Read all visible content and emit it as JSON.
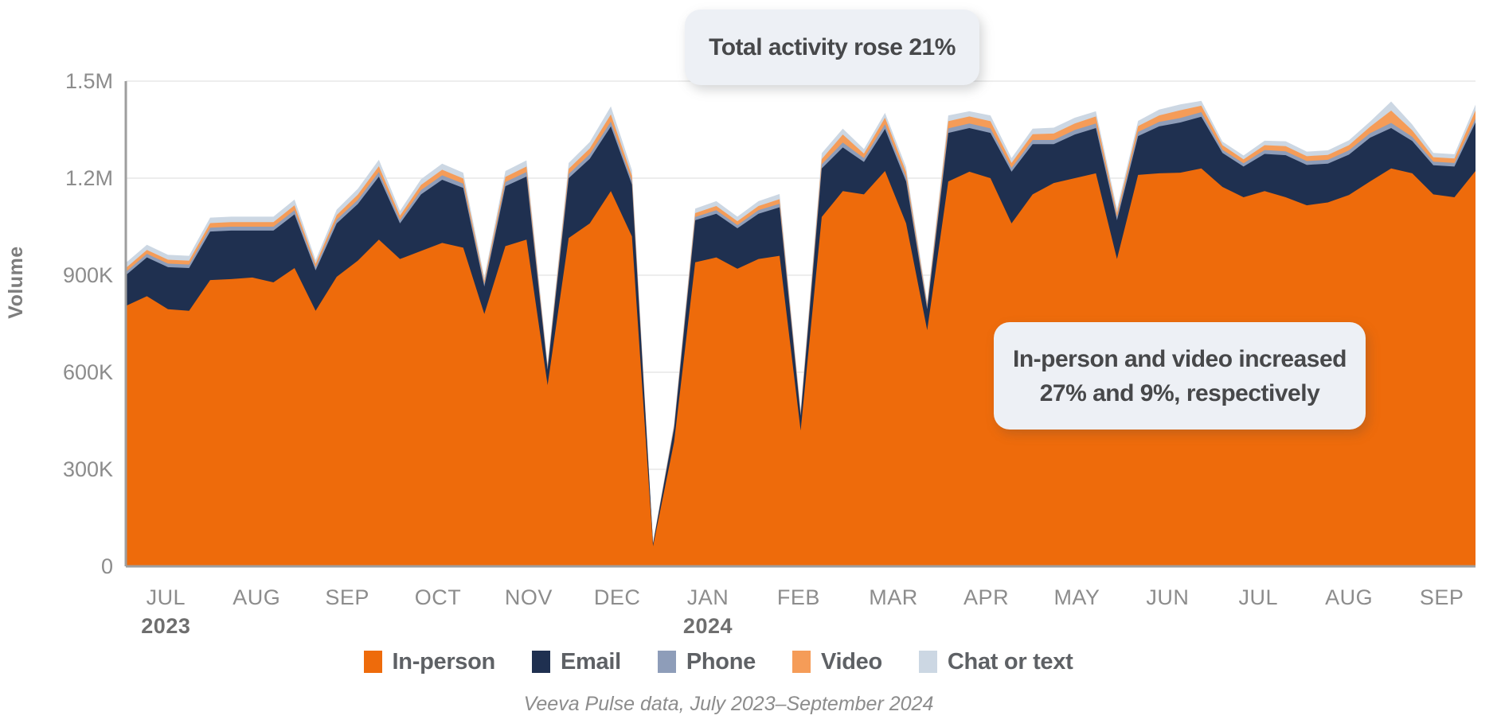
{
  "annotations": {
    "total": "Total activity rose 21%",
    "detail_line1": "In-person and video increased",
    "detail_line2": "27% and 9%, respectively"
  },
  "caption": "Veeva Pulse data, July 2023–September 2024",
  "y_axis": {
    "label": "Volume",
    "ticks": [
      {
        "label": "0",
        "value": 0
      },
      {
        "label": "300K",
        "value": 300
      },
      {
        "label": "600K",
        "value": 600
      },
      {
        "label": "900K",
        "value": 900
      },
      {
        "label": "1.2M",
        "value": 1200
      },
      {
        "label": "1.5M",
        "value": 1500
      }
    ]
  },
  "x_axis": {
    "months": [
      {
        "label": "JUL",
        "year": "2023",
        "wc": 1.9
      },
      {
        "label": "AUG",
        "wc": 6.2
      },
      {
        "label": "SEP",
        "wc": 10.5
      },
      {
        "label": "OCT",
        "wc": 14.8
      },
      {
        "label": "NOV",
        "wc": 19.1
      },
      {
        "label": "DEC",
        "wc": 23.3
      },
      {
        "label": "JAN",
        "year": "2024",
        "wc": 27.6
      },
      {
        "label": "FEB",
        "wc": 31.9
      },
      {
        "label": "MAR",
        "wc": 36.4
      },
      {
        "label": "APR",
        "wc": 40.8
      },
      {
        "label": "MAY",
        "wc": 45.1
      },
      {
        "label": "JUN",
        "wc": 49.4
      },
      {
        "label": "JUL",
        "wc": 53.7
      },
      {
        "label": "AUG",
        "wc": 58.0
      },
      {
        "label": "SEP",
        "wc": 62.4
      }
    ]
  },
  "colors": {
    "grid": "#ededed",
    "axis": "#9e9e9e",
    "callout_bg": "#edf0f5",
    "callout_text": "#47484a"
  },
  "chart_data": {
    "type": "area",
    "stacked": true,
    "title": "",
    "xlabel": "",
    "ylabel": "Volume",
    "ylim_thousands": [
      0,
      1500
    ],
    "y_tick_labels": [
      "0",
      "300K",
      "600K",
      "900K",
      "1.2M",
      "1.5M"
    ],
    "x_unit": "week",
    "n_weeks": 65,
    "x_range_label": "July 2023 – September 2024",
    "values_unit": "thousands of activities",
    "legend_position": "bottom",
    "grid": "horizontal-faint",
    "series": [
      {
        "name": "In-person",
        "color": "#ee6b0b",
        "values": [
          805,
          835,
          795,
          790,
          885,
          888,
          893,
          878,
          922,
          790,
          895,
          945,
          1010,
          950,
          975,
          1000,
          985,
          780,
          990,
          1010,
          560,
          1015,
          1060,
          1160,
          1020,
          62,
          385,
          940,
          955,
          920,
          950,
          960,
          420,
          1080,
          1160,
          1150,
          1222,
          1060,
          730,
          1190,
          1220,
          1200,
          1060,
          1150,
          1185,
          1200,
          1215,
          950,
          1210,
          1215,
          1217,
          1230,
          1173,
          1141,
          1160,
          1141,
          1116,
          1125,
          1148,
          1190,
          1230,
          1215,
          1150,
          1141,
          1222
        ]
      },
      {
        "name": "Email",
        "color": "#1f3050",
        "values": [
          95,
          120,
          130,
          132,
          150,
          150,
          145,
          160,
          166,
          125,
          165,
          175,
          195,
          110,
          175,
          195,
          185,
          85,
          185,
          195,
          48,
          185,
          200,
          200,
          160,
          8,
          42,
          130,
          135,
          125,
          140,
          150,
          45,
          150,
          135,
          100,
          130,
          130,
          65,
          150,
          135,
          140,
          160,
          155,
          120,
          135,
          140,
          120,
          120,
          145,
          155,
          160,
          105,
          95,
          115,
          130,
          125,
          120,
          125,
          135,
          125,
          100,
          90,
          95,
          150
        ]
      },
      {
        "name": "Phone",
        "color": "#8e9db9",
        "values": [
          10,
          11,
          11,
          11,
          12,
          12,
          12,
          12,
          13,
          10,
          12,
          13,
          14,
          11,
          13,
          14,
          13,
          8,
          13,
          14,
          5,
          13,
          14,
          15,
          12,
          1,
          4,
          10,
          11,
          10,
          11,
          11,
          5,
          13,
          15,
          12,
          15,
          13,
          7,
          14,
          14,
          14,
          12,
          13,
          13,
          14,
          14,
          10,
          13,
          14,
          14,
          14,
          10,
          10,
          12,
          12,
          12,
          12,
          13,
          14,
          16,
          13,
          11,
          11,
          12
        ]
      },
      {
        "name": "Video",
        "color": "#f59c58",
        "values": [
          12,
          12,
          12,
          12,
          14,
          14,
          14,
          14,
          15,
          10,
          14,
          16,
          18,
          13,
          16,
          17,
          16,
          9,
          16,
          17,
          6,
          16,
          18,
          22,
          15,
          1,
          5,
          12,
          13,
          12,
          13,
          14,
          6,
          16,
          25,
          14,
          20,
          16,
          8,
          22,
          22,
          22,
          15,
          18,
          20,
          20,
          22,
          12,
          18,
          20,
          24,
          20,
          14,
          12,
          15,
          16,
          15,
          15,
          16,
          20,
          38,
          20,
          14,
          14,
          25
        ]
      },
      {
        "name": "Chat or text",
        "color": "#ccd7e3",
        "values": [
          16,
          16,
          15,
          15,
          17,
          17,
          17,
          17,
          18,
          12,
          17,
          18,
          20,
          15,
          18,
          19,
          18,
          12,
          18,
          19,
          8,
          18,
          20,
          25,
          18,
          2,
          8,
          14,
          15,
          14,
          15,
          16,
          9,
          18,
          18,
          14,
          15,
          15,
          10,
          18,
          16,
          18,
          15,
          17,
          18,
          18,
          16,
          14,
          16,
          18,
          18,
          15,
          11,
          12,
          14,
          15,
          14,
          14,
          15,
          16,
          28,
          18,
          13,
          13,
          18
        ]
      }
    ]
  }
}
